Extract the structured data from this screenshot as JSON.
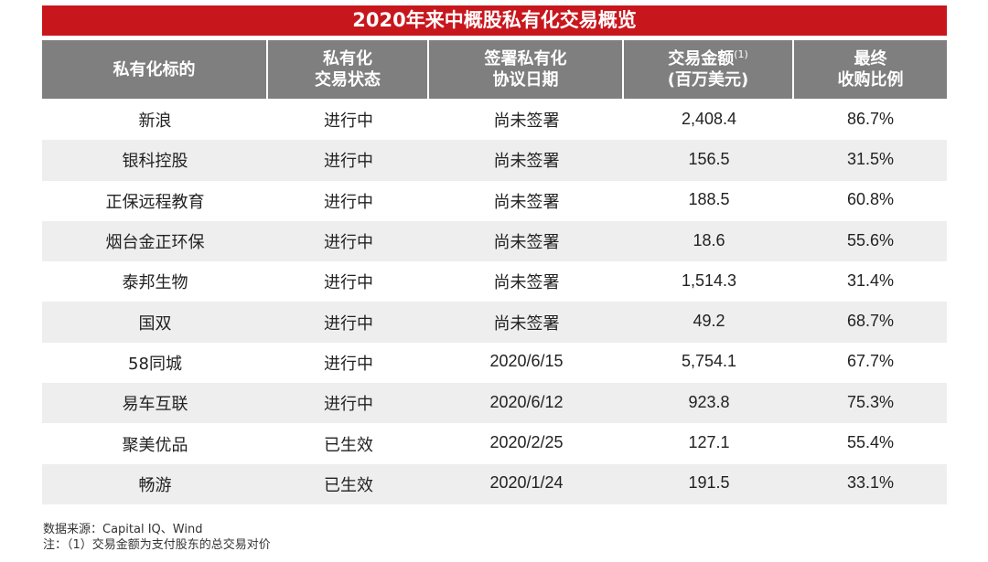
{
  "title": "2020年来中概股私有化交易概览",
  "columns": {
    "col1": [
      "私有化标的"
    ],
    "col2": [
      "私有化",
      "交易状态"
    ],
    "col3": [
      "签署私有化",
      "协议日期"
    ],
    "col4": [
      "交易金额",
      "(百万美元)"
    ],
    "col4_sup": "(1)",
    "col5": [
      "最终",
      "收购比例"
    ]
  },
  "rows": [
    {
      "name": "新浪",
      "status": "进行中",
      "date": "尚未签署",
      "amount": "2,408.4",
      "ratio": "86.7%"
    },
    {
      "name": "银科控股",
      "status": "进行中",
      "date": "尚未签署",
      "amount": "156.5",
      "ratio": "31.5%"
    },
    {
      "name": "正保远程教育",
      "status": "进行中",
      "date": "尚未签署",
      "amount": "188.5",
      "ratio": "60.8%"
    },
    {
      "name": "烟台金正环保",
      "status": "进行中",
      "date": "尚未签署",
      "amount": "18.6",
      "ratio": "55.6%"
    },
    {
      "name": "泰邦生物",
      "status": "进行中",
      "date": "尚未签署",
      "amount": "1,514.3",
      "ratio": "31.4%"
    },
    {
      "name": "国双",
      "status": "进行中",
      "date": "尚未签署",
      "amount": "49.2",
      "ratio": "68.7%"
    },
    {
      "name": "58同城",
      "status": "进行中",
      "date": "2020/6/15",
      "amount": "5,754.1",
      "ratio": "67.7%"
    },
    {
      "name": "易车互联",
      "status": "进行中",
      "date": "2020/6/12",
      "amount": "923.8",
      "ratio": "75.3%"
    },
    {
      "name": "聚美优品",
      "status": "已生效",
      "date": "2020/2/25",
      "amount": "127.1",
      "ratio": "55.4%"
    },
    {
      "name": "畅游",
      "status": "已生效",
      "date": "2020/1/24",
      "amount": "191.5",
      "ratio": "33.1%"
    }
  ],
  "notes": {
    "source": "数据来源：Capital IQ、Wind",
    "footnote": "注：（1）交易金额为支付股东的总交易对价"
  },
  "colors": {
    "title_bg": "#c8161d",
    "header_bg": "#7f7f7f",
    "alt_row_bg": "#eeeeee"
  }
}
